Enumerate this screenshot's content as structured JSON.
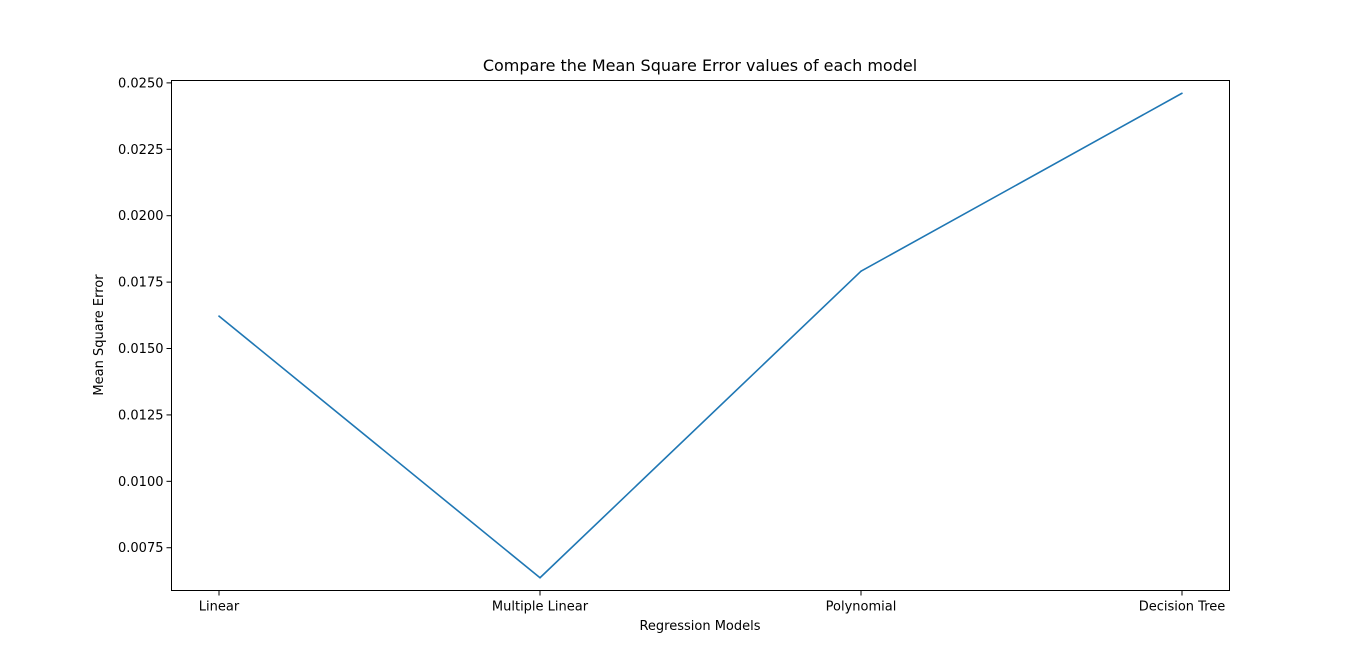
{
  "chart_data": {
    "type": "line",
    "title": "Compare the Mean Square Error values of each model",
    "xlabel": "Regression Models",
    "ylabel": "Mean Square Error",
    "categories": [
      "Linear",
      "Multiple Linear",
      "Polynomial",
      "Decision Tree"
    ],
    "series": [
      {
        "values": [
          0.01622,
          0.00637,
          0.01791,
          0.02461
        ],
        "color": "#1f77b4"
      }
    ],
    "ylim": [
      0.00589,
      0.02509
    ],
    "yticks": [
      0.0075,
      0.01,
      0.0125,
      0.015,
      0.0175,
      0.02,
      0.0225,
      0.025
    ],
    "ytick_labels": [
      "0.0075",
      "0.0100",
      "0.0125",
      "0.0150",
      "0.0175",
      "0.0200",
      "0.0225",
      "0.0250"
    ],
    "grid": false,
    "legend": "none"
  }
}
